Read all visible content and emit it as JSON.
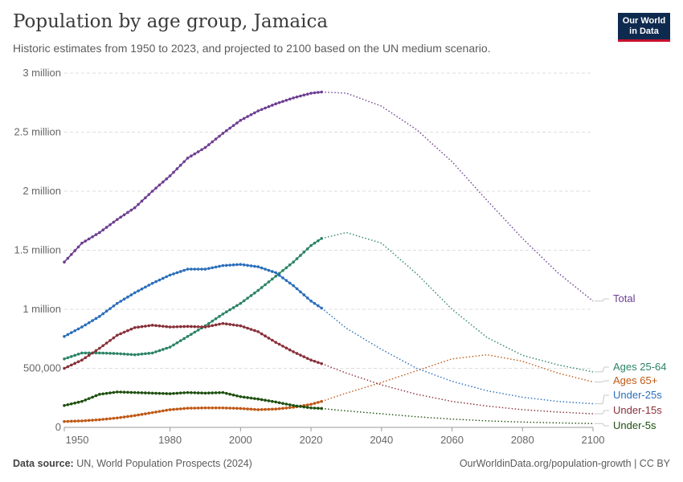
{
  "header": {
    "title": "Population by age group, Jamaica",
    "subtitle": "Historic estimates from 1950 to 2023, and projected to 2100 based on the UN medium scenario."
  },
  "logo": {
    "line1": "Our World",
    "line2": "in Data",
    "bg_color": "#0f2a4f",
    "accent_color": "#c8102e"
  },
  "footer": {
    "source_label": "Data source:",
    "source_text": "UN, World Population Prospects (2024)",
    "url": "OurWorldinData.org/population-growth | CC BY"
  },
  "chart_data": {
    "type": "line",
    "title": "Population by age group, Jamaica",
    "xlim": [
      1950,
      2100
    ],
    "ylim": [
      0,
      3000000
    ],
    "x_ticks": [
      1950,
      1980,
      2000,
      2020,
      2040,
      2060,
      2080,
      2100
    ],
    "y_ticks": [
      0,
      500000,
      1000000,
      1500000,
      2000000,
      2500000,
      3000000
    ],
    "y_tick_labels": [
      "0",
      "500,000",
      "1 million",
      "1.5 million",
      "2 million",
      "2.5 million",
      "3 million"
    ],
    "grid": "horizontal dashed",
    "historic_end": 2023,
    "note": "",
    "series": [
      {
        "name": "Total",
        "color": "#6d3e91",
        "points": [
          [
            1950,
            1400000
          ],
          [
            1955,
            1560000
          ],
          [
            1960,
            1650000
          ],
          [
            1965,
            1760000
          ],
          [
            1970,
            1860000
          ],
          [
            1975,
            2000000
          ],
          [
            1980,
            2130000
          ],
          [
            1985,
            2280000
          ],
          [
            1990,
            2370000
          ],
          [
            1995,
            2490000
          ],
          [
            2000,
            2600000
          ],
          [
            2005,
            2680000
          ],
          [
            2010,
            2740000
          ],
          [
            2015,
            2790000
          ],
          [
            2020,
            2830000
          ],
          [
            2023,
            2840000
          ],
          [
            2030,
            2830000
          ],
          [
            2040,
            2720000
          ],
          [
            2050,
            2520000
          ],
          [
            2060,
            2250000
          ],
          [
            2070,
            1920000
          ],
          [
            2080,
            1600000
          ],
          [
            2090,
            1310000
          ],
          [
            2100,
            1070000
          ]
        ]
      },
      {
        "name": "Ages 25-64",
        "color": "#2c8465",
        "points": [
          [
            1950,
            580000
          ],
          [
            1955,
            630000
          ],
          [
            1960,
            630000
          ],
          [
            1965,
            625000
          ],
          [
            1970,
            615000
          ],
          [
            1975,
            630000
          ],
          [
            1980,
            680000
          ],
          [
            1985,
            770000
          ],
          [
            1990,
            860000
          ],
          [
            1995,
            960000
          ],
          [
            2000,
            1050000
          ],
          [
            2005,
            1160000
          ],
          [
            2010,
            1280000
          ],
          [
            2015,
            1400000
          ],
          [
            2020,
            1540000
          ],
          [
            2023,
            1600000
          ],
          [
            2030,
            1650000
          ],
          [
            2040,
            1560000
          ],
          [
            2050,
            1300000
          ],
          [
            2060,
            1000000
          ],
          [
            2070,
            760000
          ],
          [
            2080,
            610000
          ],
          [
            2090,
            530000
          ],
          [
            2100,
            470000
          ]
        ]
      },
      {
        "name": "Ages 65+",
        "color": "#c05917",
        "points": [
          [
            1950,
            50000
          ],
          [
            1955,
            55000
          ],
          [
            1960,
            65000
          ],
          [
            1965,
            80000
          ],
          [
            1970,
            100000
          ],
          [
            1975,
            125000
          ],
          [
            1980,
            150000
          ],
          [
            1985,
            162000
          ],
          [
            1990,
            165000
          ],
          [
            1995,
            165000
          ],
          [
            2000,
            160000
          ],
          [
            2005,
            150000
          ],
          [
            2010,
            155000
          ],
          [
            2015,
            170000
          ],
          [
            2020,
            195000
          ],
          [
            2023,
            220000
          ],
          [
            2030,
            290000
          ],
          [
            2040,
            380000
          ],
          [
            2050,
            480000
          ],
          [
            2060,
            580000
          ],
          [
            2070,
            615000
          ],
          [
            2080,
            560000
          ],
          [
            2090,
            460000
          ],
          [
            2100,
            385000
          ]
        ]
      },
      {
        "name": "Under-25s",
        "color": "#2a6ebb",
        "points": [
          [
            1950,
            770000
          ],
          [
            1955,
            850000
          ],
          [
            1960,
            940000
          ],
          [
            1965,
            1050000
          ],
          [
            1970,
            1140000
          ],
          [
            1975,
            1220000
          ],
          [
            1980,
            1290000
          ],
          [
            1985,
            1340000
          ],
          [
            1990,
            1340000
          ],
          [
            1995,
            1370000
          ],
          [
            2000,
            1380000
          ],
          [
            2005,
            1360000
          ],
          [
            2010,
            1310000
          ],
          [
            2015,
            1200000
          ],
          [
            2020,
            1070000
          ],
          [
            2023,
            1010000
          ],
          [
            2030,
            840000
          ],
          [
            2040,
            660000
          ],
          [
            2050,
            500000
          ],
          [
            2060,
            390000
          ],
          [
            2070,
            310000
          ],
          [
            2080,
            255000
          ],
          [
            2090,
            220000
          ],
          [
            2100,
            200000
          ]
        ]
      },
      {
        "name": "Under-15s",
        "color": "#883039",
        "points": [
          [
            1950,
            500000
          ],
          [
            1955,
            570000
          ],
          [
            1960,
            670000
          ],
          [
            1965,
            780000
          ],
          [
            1970,
            845000
          ],
          [
            1975,
            865000
          ],
          [
            1980,
            850000
          ],
          [
            1985,
            855000
          ],
          [
            1990,
            850000
          ],
          [
            1995,
            880000
          ],
          [
            2000,
            860000
          ],
          [
            2005,
            810000
          ],
          [
            2010,
            720000
          ],
          [
            2015,
            640000
          ],
          [
            2020,
            570000
          ],
          [
            2023,
            540000
          ],
          [
            2030,
            460000
          ],
          [
            2040,
            360000
          ],
          [
            2050,
            280000
          ],
          [
            2060,
            220000
          ],
          [
            2070,
            180000
          ],
          [
            2080,
            150000
          ],
          [
            2090,
            130000
          ],
          [
            2100,
            115000
          ]
        ]
      },
      {
        "name": "Under-5s",
        "color": "#1e5010",
        "points": [
          [
            1950,
            185000
          ],
          [
            1955,
            220000
          ],
          [
            1960,
            280000
          ],
          [
            1965,
            300000
          ],
          [
            1970,
            295000
          ],
          [
            1975,
            290000
          ],
          [
            1980,
            285000
          ],
          [
            1985,
            295000
          ],
          [
            1990,
            290000
          ],
          [
            1995,
            295000
          ],
          [
            2000,
            260000
          ],
          [
            2005,
            240000
          ],
          [
            2010,
            215000
          ],
          [
            2015,
            185000
          ],
          [
            2020,
            165000
          ],
          [
            2023,
            160000
          ],
          [
            2030,
            140000
          ],
          [
            2040,
            115000
          ],
          [
            2050,
            90000
          ],
          [
            2060,
            70000
          ],
          [
            2070,
            55000
          ],
          [
            2080,
            45000
          ],
          [
            2090,
            38000
          ],
          [
            2100,
            32000
          ]
        ]
      }
    ],
    "labels": [
      {
        "name": "Total",
        "text": "Total",
        "color": "#6d3e91"
      },
      {
        "name": "Ages 25-64",
        "text": "Ages 25-64",
        "color": "#2c8465"
      },
      {
        "name": "Ages 65+",
        "text": "Ages 65+",
        "color": "#c05917"
      },
      {
        "name": "Under-25s",
        "text": "Under-25s",
        "color": "#2a6ebb"
      },
      {
        "name": "Under-15s",
        "text": "Under-15s",
        "color": "#883039"
      },
      {
        "name": "Under-5s",
        "text": "Under-5s",
        "color": "#1e5010"
      }
    ]
  }
}
